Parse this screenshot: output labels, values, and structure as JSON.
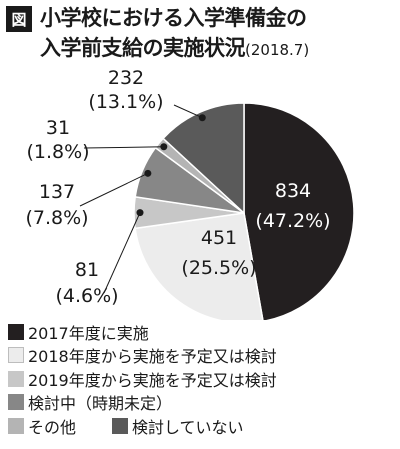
{
  "header": {
    "badge": "図",
    "title_line1": "小学校における入学準備金の",
    "title_line2": "入学前支給の実施状況",
    "date_note": "(2018.7)"
  },
  "chart_data": {
    "type": "pie",
    "slices": [
      {
        "label": "2017年度に実施",
        "value": 834,
        "value_label": "834",
        "percent_label": "(47.2%)",
        "color": "#231f20"
      },
      {
        "label": "2018年度から実施を予定又は検討",
        "value": 451,
        "value_label": "451",
        "percent_label": "(25.5%)",
        "color": "#ececec"
      },
      {
        "label": "2019年度から実施を予定又は検討",
        "value": 81,
        "value_label": "81",
        "percent_label": "(4.6%)",
        "color": "#c7c7c7"
      },
      {
        "label": "検討中（時期未定）",
        "value": 137,
        "value_label": "137",
        "percent_label": "(7.8%)",
        "color": "#878787"
      },
      {
        "label": "その他",
        "value": 31,
        "value_label": "31",
        "percent_label": "(1.8%)",
        "color": "#b4b4b4"
      },
      {
        "label": "検討していない",
        "value": 232,
        "value_label": "232",
        "percent_label": "(13.1%)",
        "color": "#5a5a5a"
      }
    ],
    "start_angle_deg": 0,
    "direction": "clockwise",
    "legend_position": "bottom"
  }
}
